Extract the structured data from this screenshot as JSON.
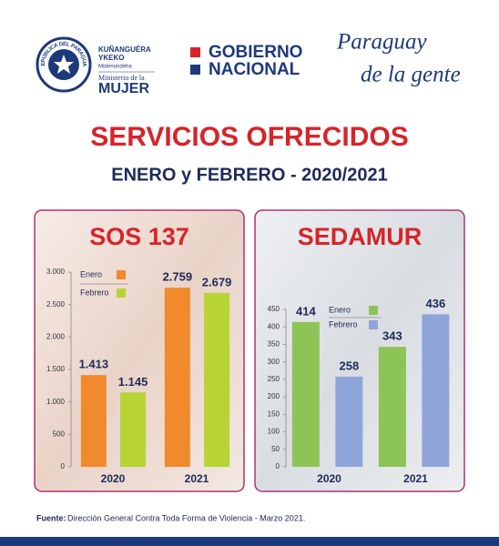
{
  "header": {
    "seal": "REPÚBLICA DEL PARAGUAY",
    "ministry_line1": "KUÑANGUÉRA",
    "ministry_line2": "YKEKO",
    "ministry_line3": "Motenondeha",
    "ministry_line4": "Ministerio de la",
    "ministry_line5": "MUJER",
    "gov_line1": "GOBIERNO",
    "gov_line2": "NACIONAL",
    "slogan_line1": "Paraguay",
    "slogan_line2": "de la gente"
  },
  "title": "SERVICIOS OFRECIDOS",
  "subtitle": "ENERO y FEBRERO - 2020/2021",
  "chart_data": [
    {
      "type": "bar",
      "title": "SOS 137",
      "categories": [
        "2020",
        "2021"
      ],
      "series": [
        {
          "name": "Enero",
          "color": "#f08a2c",
          "values": [
            1413,
            2759
          ],
          "value_labels": [
            "1.413",
            "2.759"
          ]
        },
        {
          "name": "Febrero",
          "color": "#b7d434",
          "values": [
            1145,
            2679
          ],
          "value_labels": [
            "1.145",
            "2.679"
          ]
        }
      ],
      "ylim": [
        0,
        3000
      ],
      "yticks": [
        0,
        500,
        {
          "value": 1000,
          "label": "1.000"
        },
        {
          "value": 1500,
          "label": "1.500"
        },
        {
          "value": 2000,
          "label": "2.000"
        },
        {
          "value": 2500,
          "label": "2.500"
        },
        {
          "value": 3000,
          "label": "3.000"
        }
      ]
    },
    {
      "type": "bar",
      "title": "SEDAMUR",
      "categories": [
        "2020",
        "2021"
      ],
      "series": [
        {
          "name": "Enero",
          "color": "#8cc456",
          "values": [
            414,
            343
          ]
        },
        {
          "name": "Febrero",
          "color": "#8fa5da",
          "values": [
            258,
            436
          ]
        }
      ],
      "ylim": [
        0,
        450
      ],
      "yticks": [
        0,
        50,
        100,
        150,
        200,
        250,
        300,
        350,
        400,
        450
      ]
    }
  ],
  "footer": {
    "label": "Fuente:",
    "text": "Dirección General Contra Toda Forma de Violencia - Marzo 2021."
  }
}
